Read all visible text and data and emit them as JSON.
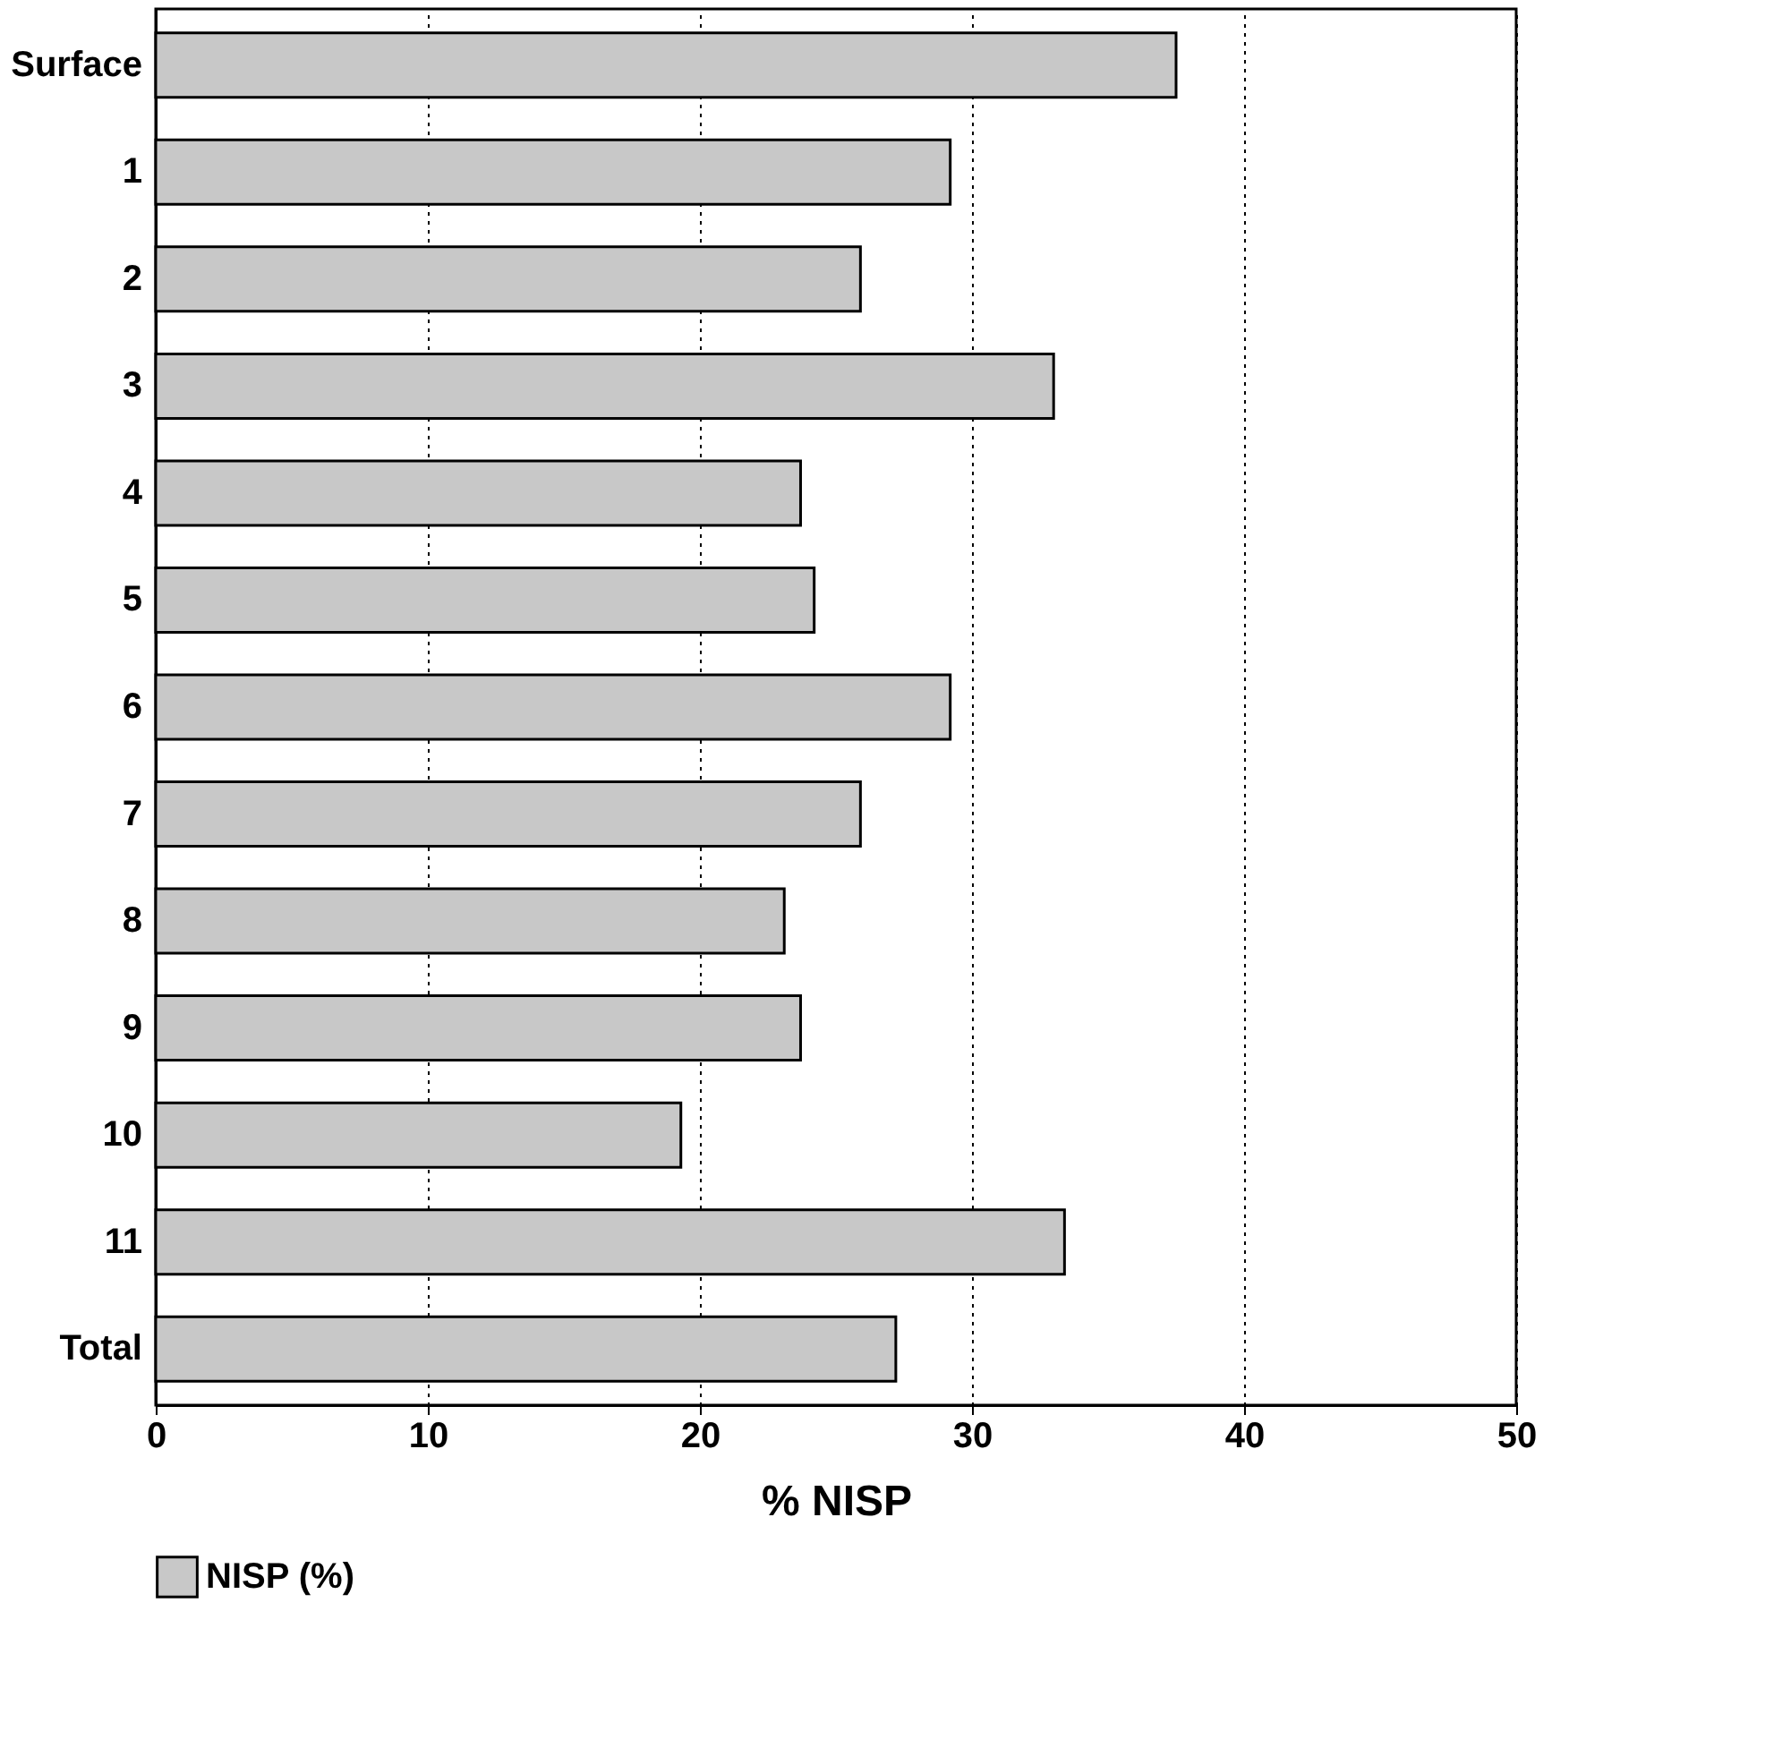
{
  "chart_data": {
    "type": "bar",
    "orientation": "horizontal",
    "xlabel": "% NISP",
    "categories": [
      "Surface",
      "1",
      "2",
      "3",
      "4",
      "5",
      "6",
      "7",
      "8",
      "9",
      "10",
      "11",
      "Total"
    ],
    "series": [
      {
        "name": "NISP (%)",
        "color": "#c8c8c8",
        "values": [
          37.5,
          29.2,
          25.9,
          33.0,
          23.7,
          24.2,
          29.2,
          25.9,
          23.1,
          23.7,
          19.3,
          33.4,
          27.2
        ]
      }
    ],
    "xlim": [
      0,
      50
    ],
    "xticks": [
      0,
      10,
      20,
      30,
      40,
      50
    ],
    "grid": "x",
    "legend": "bottom"
  }
}
